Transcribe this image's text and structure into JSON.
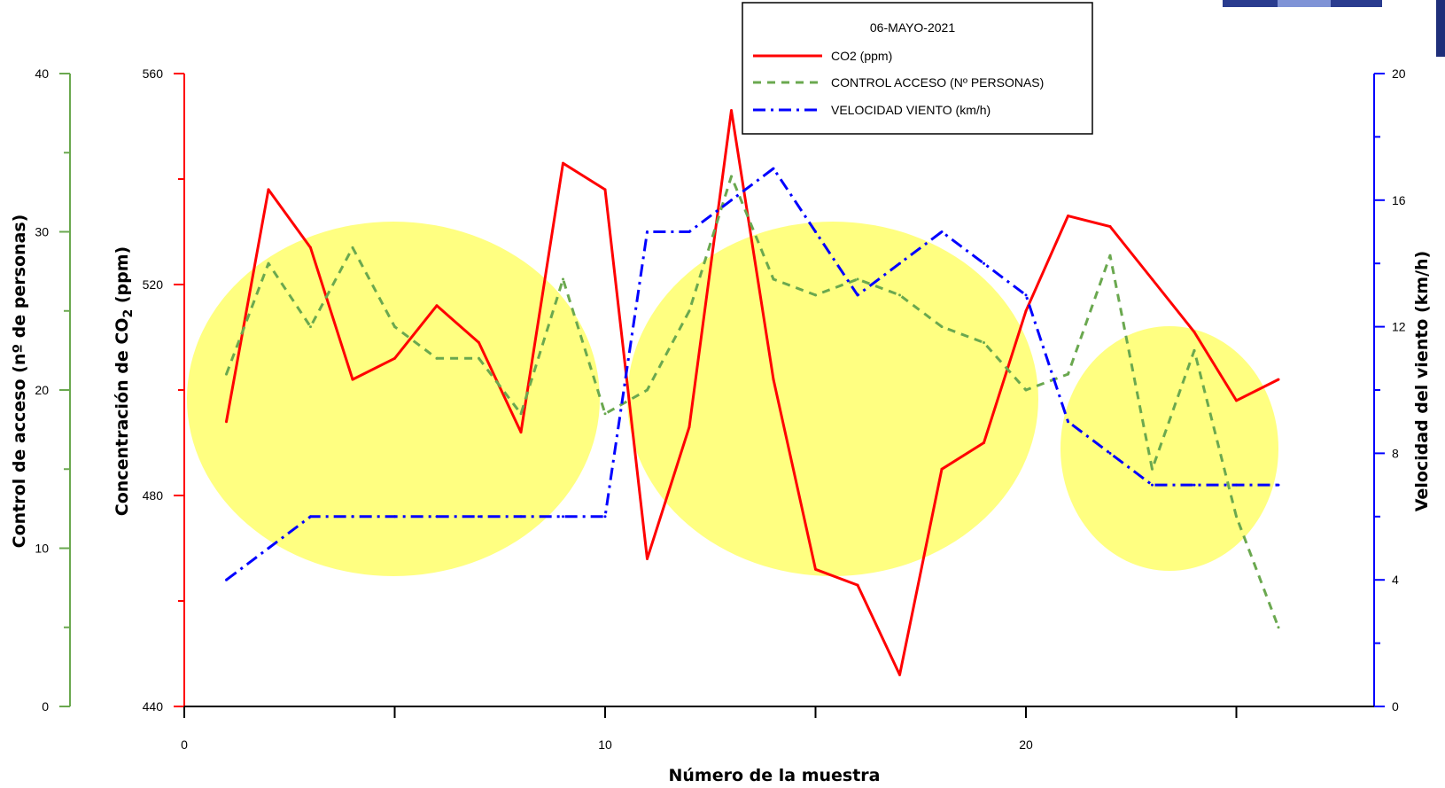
{
  "chart_data": {
    "type": "line",
    "title": "06-MAYO-2021",
    "xlabel": "Número de la muestra",
    "x": [
      1,
      2,
      3,
      4,
      5,
      6,
      7,
      8,
      9,
      10,
      11,
      12,
      13,
      14,
      15,
      16,
      17,
      18,
      19,
      20,
      21,
      22,
      23,
      24,
      25,
      26
    ],
    "xlim": [
      0,
      28
    ],
    "xticks": [
      "0",
      "10",
      "20"
    ],
    "axes": {
      "co2": {
        "label_main": "Concentración de CO",
        "label_sub": "2",
        "label_end": " (ppm)",
        "ylim": [
          440,
          560
        ],
        "ticks": [
          "440",
          "480",
          "520",
          "560"
        ],
        "color": "#ff0000"
      },
      "acceso": {
        "label": "Control de acceso (nº de personas)",
        "ylim": [
          0,
          40
        ],
        "ticks": [
          "0",
          "10",
          "20",
          "30",
          "40"
        ],
        "color": "#6aa84f"
      },
      "viento": {
        "label": "Velocidad del viento (km/h)",
        "ylim": [
          0,
          20
        ],
        "ticks": [
          "0",
          "4",
          "8",
          "12",
          "16",
          "20"
        ],
        "color": "#0000ff"
      }
    },
    "series": [
      {
        "name": "CO2 (ppm)",
        "axis": "co2",
        "color": "#ff0000",
        "style": "solid",
        "values": [
          494,
          538,
          527,
          502,
          506,
          516,
          509,
          492,
          543,
          538,
          468,
          493,
          553,
          502,
          466,
          463,
          446,
          485,
          490,
          515,
          533,
          531,
          521,
          511,
          498,
          502
        ]
      },
      {
        "name": "CONTROL ACCESO (Nº PERSONAS)",
        "axis": "acceso",
        "color": "#6aa84f",
        "style": "dashed",
        "values": [
          21,
          28,
          24,
          29,
          24,
          22,
          22,
          18.5,
          27,
          18.5,
          20,
          25,
          33.5,
          27,
          26,
          27,
          26,
          24,
          23,
          20,
          21,
          28.5,
          15,
          22.5,
          12,
          5
        ]
      },
      {
        "name": "VELOCIDAD VIENTO (km/h)",
        "axis": "viento",
        "color": "#0000ff",
        "style": "dashdot",
        "values": [
          4,
          5,
          6,
          6,
          6,
          6,
          6,
          6,
          6,
          6,
          15,
          15,
          16,
          17,
          15,
          13,
          14,
          15,
          14,
          13,
          9,
          8,
          7,
          7,
          7,
          7
        ]
      }
    ],
    "legend_position": "top-center",
    "highlight_ellipses": 3
  }
}
